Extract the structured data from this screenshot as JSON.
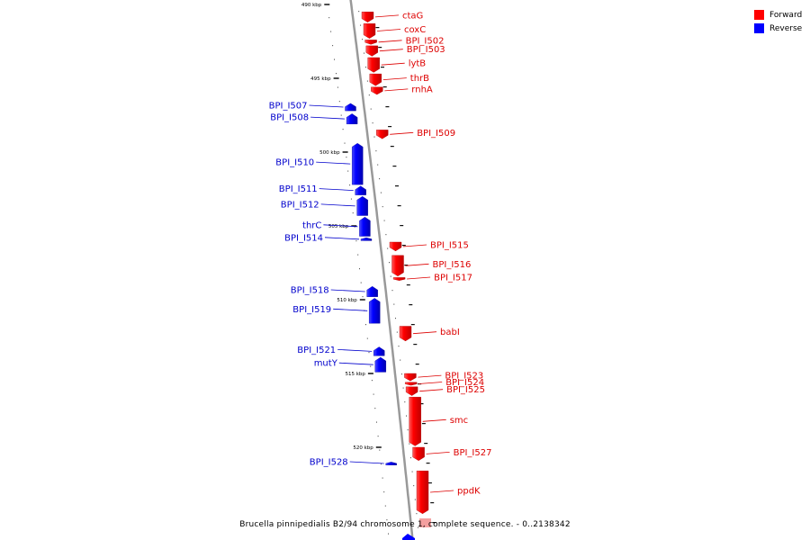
{
  "legend": {
    "forward_label": "Forward",
    "reverse_label": "Reverse",
    "forward_color": "#ff0000",
    "reverse_color": "#0000ff"
  },
  "caption": "Brucella pinnipedialis B2/94 chromosome 1, complete sequence. - 0..2138342",
  "scale": {
    "unit": "kbp",
    "ticks": [
      490,
      495,
      500,
      505,
      510,
      515,
      520
    ]
  },
  "genes": [
    {
      "name": "ctaG",
      "strand": "forward",
      "start": 490.5,
      "end": 491.2
    },
    {
      "name": "coxC",
      "strand": "forward",
      "start": 491.3,
      "end": 492.3
    },
    {
      "name": "BPI_I502",
      "strand": "forward",
      "start": 492.4,
      "end": 492.7
    },
    {
      "name": "BPI_I503",
      "strand": "forward",
      "start": 492.8,
      "end": 493.5
    },
    {
      "name": "lytB",
      "strand": "forward",
      "start": 493.6,
      "end": 494.6
    },
    {
      "name": "thrB",
      "strand": "forward",
      "start": 494.7,
      "end": 495.5
    },
    {
      "name": "rnhA",
      "strand": "forward",
      "start": 495.6,
      "end": 496.1
    },
    {
      "name": "BPI_I507",
      "strand": "reverse",
      "start": 496.7,
      "end": 497.2
    },
    {
      "name": "BPI_I508",
      "strand": "reverse",
      "start": 497.4,
      "end": 498.1
    },
    {
      "name": "BPI_I509",
      "strand": "forward",
      "start": 498.5,
      "end": 499.1
    },
    {
      "name": "BPI_I510",
      "strand": "reverse",
      "start": 499.4,
      "end": 502.2
    },
    {
      "name": "BPI_I511",
      "strand": "reverse",
      "start": 502.3,
      "end": 502.9
    },
    {
      "name": "BPI_I512",
      "strand": "reverse",
      "start": 503.0,
      "end": 504.3
    },
    {
      "name": "thrC",
      "strand": "reverse",
      "start": 504.4,
      "end": 505.7
    },
    {
      "name": "BPI_I514",
      "strand": "reverse",
      "start": 505.8,
      "end": 506.0
    },
    {
      "name": "BPI_I515",
      "strand": "forward",
      "start": 506.1,
      "end": 506.7
    },
    {
      "name": "BPI_I516",
      "strand": "forward",
      "start": 507.0,
      "end": 508.4
    },
    {
      "name": "BPI_I517",
      "strand": "forward",
      "start": 508.5,
      "end": 508.7
    },
    {
      "name": "BPI_I518",
      "strand": "reverse",
      "start": 509.1,
      "end": 509.8
    },
    {
      "name": "BPI_I519",
      "strand": "reverse",
      "start": 509.9,
      "end": 511.6
    },
    {
      "name": "babI",
      "strand": "forward",
      "start": 511.8,
      "end": 512.8
    },
    {
      "name": "BPI_I521",
      "strand": "reverse",
      "start": 513.2,
      "end": 513.8
    },
    {
      "name": "mutY",
      "strand": "reverse",
      "start": 513.9,
      "end": 514.9
    },
    {
      "name": "BPI_I523",
      "strand": "forward",
      "start": 515.0,
      "end": 515.5
    },
    {
      "name": "BPI_I524",
      "strand": "forward",
      "start": 515.6,
      "end": 515.8
    },
    {
      "name": "BPI_I525",
      "strand": "forward",
      "start": 515.9,
      "end": 516.5
    },
    {
      "name": "smc",
      "strand": "forward",
      "start": 516.6,
      "end": 519.9
    },
    {
      "name": "BPI_I527",
      "strand": "forward",
      "start": 520.0,
      "end": 520.9
    },
    {
      "name": "BPI_I528",
      "strand": "reverse",
      "start": 521.0,
      "end": 521.2
    },
    {
      "name": "ppdK",
      "strand": "forward",
      "start": 521.6,
      "end": 524.5
    }
  ]
}
